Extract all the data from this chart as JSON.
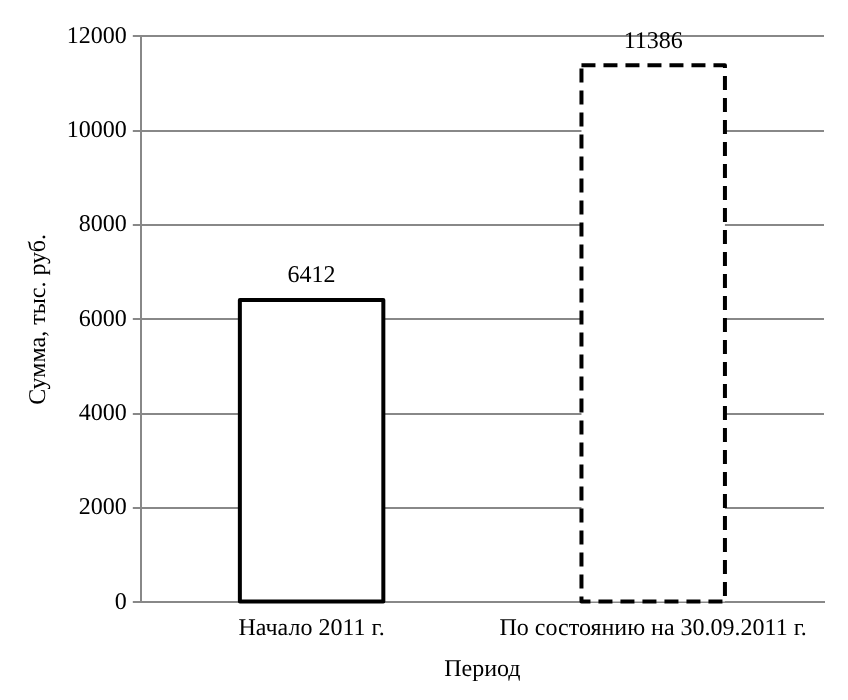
{
  "chart_data": {
    "type": "bar",
    "xlabel": "Период",
    "ylabel": "Сумма, тыс. руб.",
    "categories": [
      "Начало 2011 г.",
      "По состоянию на 30.09.2011 г."
    ],
    "series": [
      {
        "color": "#000000",
        "line_style": "solid",
        "values": [
          6412,
          null
        ]
      },
      {
        "color": "#000000",
        "line_style": "dashed",
        "values": [
          null,
          11386
        ]
      }
    ],
    "ylim": [
      0,
      12000
    ],
    "yticks": [
      0,
      2000,
      4000,
      6000,
      8000,
      10000,
      12000
    ],
    "grid": "y",
    "data_labels": true
  }
}
